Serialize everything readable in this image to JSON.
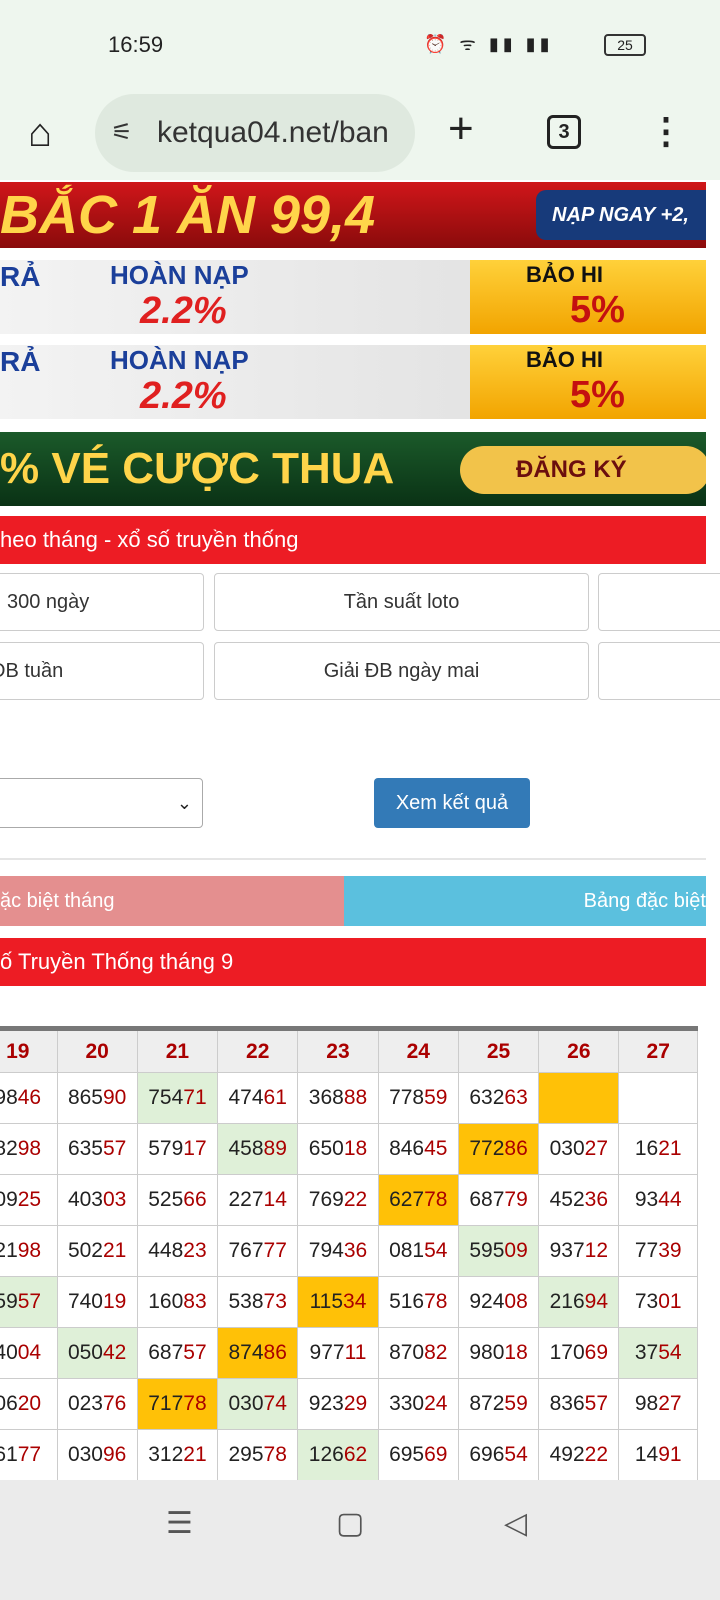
{
  "status": {
    "time": "16:59",
    "battery": "25"
  },
  "browser": {
    "url": "ketqua04.net/ban",
    "tab_count": "3"
  },
  "banners": [
    {
      "text": "BẮC 1 ĂN 99,4",
      "side": "NẠP NGAY +2,"
    },
    {
      "left": "RẢ",
      "title": "HOÀN NẠP",
      "value": "2.2%",
      "side_title": "BẢO HI",
      "side_value": "5%"
    },
    {
      "left": "RẢ",
      "title": "HOÀN NẠP",
      "value": "2.2%",
      "side_title": "BẢO HI",
      "side_value": "5%"
    },
    {
      "text": "% VÉ CƯỢC THUA",
      "side": "ĐĂNG KÝ"
    }
  ],
  "section_title": "heo tháng - xổ số truyền thống",
  "quick_buttons": [
    "300 ngày",
    "Tần suất loto",
    "ĐB tuần",
    "Giải ĐB ngày mai"
  ],
  "form": {
    "select_value": "",
    "submit": "Xem kết quả"
  },
  "tabs": [
    {
      "label": "ặc biệt tháng",
      "active": true
    },
    {
      "label": "Bảng đặc biệt",
      "active": false
    }
  ],
  "table_title": "ố Truyền Thống tháng 9",
  "table": {
    "headers": [
      "19",
      "20",
      "21",
      "22",
      "23",
      "24",
      "25",
      "26",
      "27"
    ],
    "rows": [
      [
        [
          "9846",
          ""
        ],
        [
          "86590",
          ""
        ],
        [
          "75471",
          "g"
        ],
        [
          "47461",
          ""
        ],
        [
          "36888",
          ""
        ],
        [
          "77859",
          ""
        ],
        [
          "63263",
          ""
        ],
        [
          "",
          "o"
        ],
        [
          "",
          ""
        ]
      ],
      [
        [
          "8298",
          ""
        ],
        [
          "63557",
          ""
        ],
        [
          "57917",
          ""
        ],
        [
          "45889",
          "g"
        ],
        [
          "65018",
          ""
        ],
        [
          "84645",
          ""
        ],
        [
          "77286",
          "o"
        ],
        [
          "03027",
          ""
        ],
        [
          "1621",
          ""
        ]
      ],
      [
        [
          "0925",
          ""
        ],
        [
          "40303",
          ""
        ],
        [
          "52566",
          ""
        ],
        [
          "22714",
          ""
        ],
        [
          "76922",
          ""
        ],
        [
          "62778",
          "o"
        ],
        [
          "68779",
          ""
        ],
        [
          "45236",
          ""
        ],
        [
          "9344",
          ""
        ]
      ],
      [
        [
          "2198",
          ""
        ],
        [
          "50221",
          ""
        ],
        [
          "44823",
          ""
        ],
        [
          "76777",
          ""
        ],
        [
          "79436",
          ""
        ],
        [
          "08154",
          ""
        ],
        [
          "59509",
          "g"
        ],
        [
          "93712",
          ""
        ],
        [
          "7739",
          ""
        ]
      ],
      [
        [
          "5957",
          "g"
        ],
        [
          "74019",
          ""
        ],
        [
          "16083",
          ""
        ],
        [
          "53873",
          ""
        ],
        [
          "11534",
          "o"
        ],
        [
          "51678",
          ""
        ],
        [
          "92408",
          ""
        ],
        [
          "21694",
          "g"
        ],
        [
          "7301",
          ""
        ]
      ],
      [
        [
          "4004",
          ""
        ],
        [
          "05042",
          "g"
        ],
        [
          "68757",
          ""
        ],
        [
          "87486",
          "o"
        ],
        [
          "97711",
          ""
        ],
        [
          "87082",
          ""
        ],
        [
          "98018",
          ""
        ],
        [
          "17069",
          ""
        ],
        [
          "3754",
          "g"
        ]
      ],
      [
        [
          "0620",
          ""
        ],
        [
          "02376",
          ""
        ],
        [
          "71778",
          "o"
        ],
        [
          "03074",
          "g"
        ],
        [
          "92329",
          ""
        ],
        [
          "33024",
          ""
        ],
        [
          "87259",
          ""
        ],
        [
          "83657",
          ""
        ],
        [
          "9827",
          ""
        ]
      ],
      [
        [
          "6177",
          ""
        ],
        [
          "03096",
          ""
        ],
        [
          "31221",
          ""
        ],
        [
          "29578",
          ""
        ],
        [
          "12662",
          "g"
        ],
        [
          "69569",
          ""
        ],
        [
          "69654",
          ""
        ],
        [
          "49222",
          ""
        ],
        [
          "1491",
          ""
        ]
      ]
    ]
  },
  "colors": {
    "red": "#ed1c24",
    "blue": "#337ab7",
    "highlight_orange": "#ffc107",
    "highlight_green": "#dff0d8",
    "number_tail": "#aa0000"
  }
}
